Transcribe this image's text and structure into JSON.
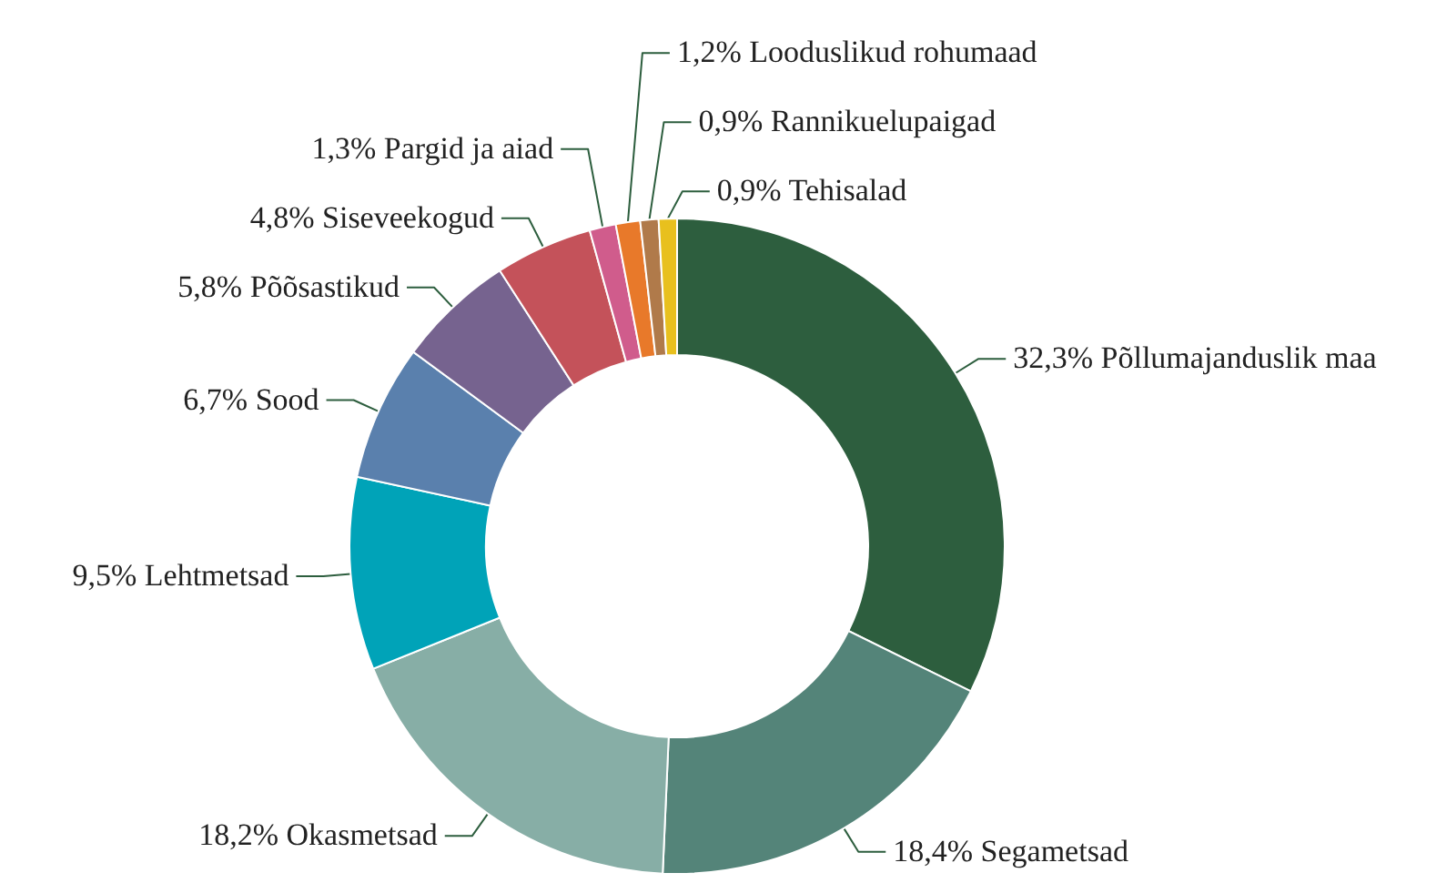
{
  "chart_data": {
    "type": "donut",
    "categories": [
      "Põllumajanduslik maa",
      "Segametsad",
      "Okasmetsad",
      "Lehtmetsad",
      "Sood",
      "Põõsastikud",
      "Siseveekogud",
      "Pargid ja aiad",
      "Looduslikud rohumaad",
      "Rannikuelupaigad",
      "Tehisalad"
    ],
    "values": [
      32.3,
      18.4,
      18.2,
      9.5,
      6.7,
      5.8,
      4.8,
      1.3,
      1.2,
      0.9,
      0.9
    ],
    "value_labels": [
      "32,3%",
      "18,4%",
      "18,2%",
      "9,5%",
      "6,7%",
      "5,8%",
      "4,8%",
      "1,3%",
      "1,2%",
      "0,9%",
      "0,9%"
    ],
    "colors": [
      "#2d5e3e",
      "#548479",
      "#87aea6",
      "#00a3b8",
      "#5a80ad",
      "#76638f",
      "#c4525a",
      "#d05c8c",
      "#e8792a",
      "#b07a4a",
      "#e8c01e"
    ]
  }
}
